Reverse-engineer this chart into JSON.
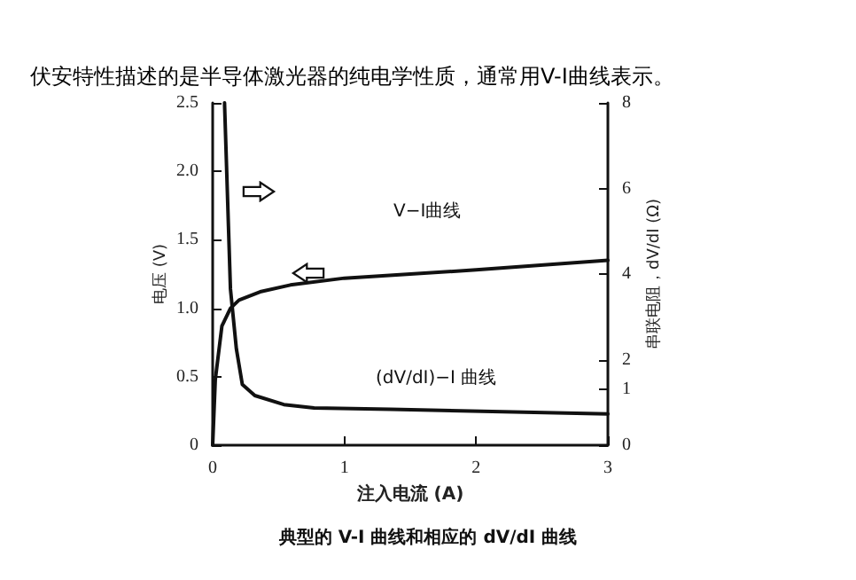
{
  "chart_data": {
    "type": "line",
    "title": "伏安特性描述的是半导体激光器的纯电学性质，通常用V-I曲线表示。",
    "xlabel": "注入电流 (A)",
    "ylabel": "电压 (V)",
    "y2label": "串联电阻，dV/dI (Ω)",
    "xlim": [
      0,
      3
    ],
    "xticks": [
      0,
      1,
      2,
      3
    ],
    "ylim": [
      0,
      2.5
    ],
    "yticks": [
      0,
      {
        "value": 0.5,
        "label": "0.5"
      },
      {
        "value": 1,
        "label": "1.0"
      },
      {
        "value": 1.5,
        "label": "1.5"
      },
      {
        "value": 2,
        "label": "2.0"
      },
      2.5
    ],
    "y2lim": [
      0,
      8
    ],
    "y2ticks": [
      0,
      {
        "value": 1.3,
        "label": "1"
      },
      2,
      4,
      6,
      8
    ],
    "grid": false,
    "marker": "none",
    "line_style": "solid",
    "series": [
      {
        "color": "#111111",
        "x": [
          0,
          0.02,
          0.07,
          0.135,
          0.2,
          0.36,
          0.59,
          1,
          2,
          3
        ],
        "values": [
          0,
          0.48,
          0.87,
          1,
          1.06,
          1.12,
          1.17,
          1.22,
          1.28,
          1.35
        ]
      },
      {
        "color": "#111111",
        "axis": "y2",
        "x": [
          0.09,
          0.135,
          0.18,
          0.225,
          0.32,
          0.54,
          0.77,
          1.35,
          3
        ],
        "values": [
          8,
          3.65,
          2.25,
          1.42,
          1.16,
          0.95,
          0.87,
          0.84,
          0.73
        ]
      }
    ],
    "annotations": [
      "V−I曲线",
      "(dV/dI)−I 曲线",
      "典型的 V-I 曲线和相应的 dV/dI 曲线"
    ]
  }
}
